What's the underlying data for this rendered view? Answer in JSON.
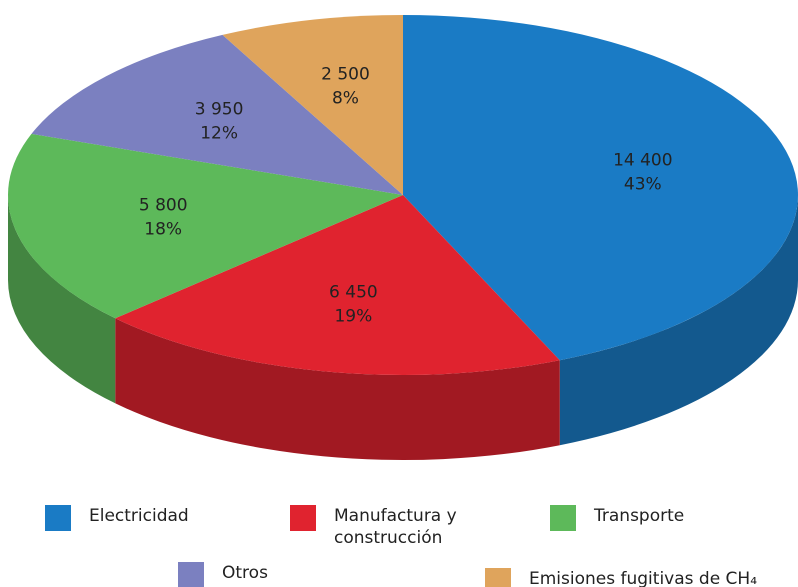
{
  "chart_data": {
    "type": "pie",
    "categories": [
      "Electricidad",
      "Manufactura y construcción",
      "Transporte",
      "Otros",
      "Emisiones fugitivas de CH₄"
    ],
    "values": [
      14400,
      6450,
      5800,
      3950,
      2500
    ],
    "value_labels": [
      "14 400",
      "6 450",
      "5 800",
      "3 950",
      "2 500"
    ],
    "percents": [
      43,
      19,
      18,
      12,
      8
    ],
    "percent_labels": [
      "43%",
      "19%",
      "18%",
      "12%",
      "8%"
    ],
    "colors": [
      "#1a7bc5",
      "#e0232f",
      "#5db95a",
      "#7b80c0",
      "#dfa45c"
    ]
  }
}
